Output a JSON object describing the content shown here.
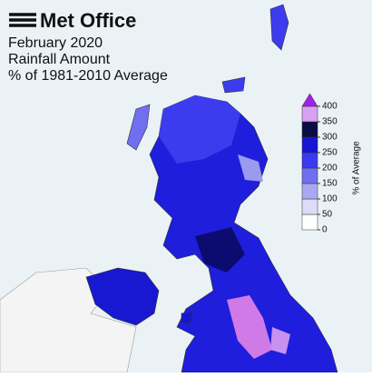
{
  "header": {
    "logo": "Met Office",
    "title_lines": [
      "February 2020",
      "Rainfall Amount",
      "% of 1981-2010 Average"
    ]
  },
  "colorbar": {
    "label": "% of Average",
    "ticks": [
      0,
      50,
      100,
      150,
      200,
      250,
      300,
      350,
      400
    ],
    "colors": [
      "#ffffff",
      "#dcdcfa",
      "#a9a9f3",
      "#6f6ff0",
      "#3a3aee",
      "#1515d4",
      "#0b0b45",
      "#d8a0f0"
    ],
    "over_color": "#a020e8"
  }
}
